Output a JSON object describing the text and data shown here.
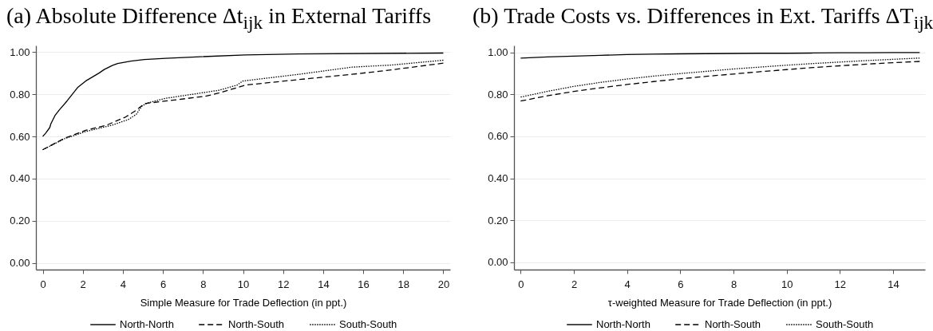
{
  "chart_data": [
    {
      "type": "line",
      "title": "(a) Absolute Difference Δt$_{ijk}$ in External Tariffs",
      "xlabel": "Simple Measure for Trade Deflection (in ppt.)",
      "xlim": [
        -0.34,
        20.34
      ],
      "ylim": [
        -0.032,
        1.032
      ],
      "xticks": [
        0,
        2,
        4,
        6,
        8,
        10,
        12,
        14,
        16,
        18,
        20
      ],
      "yticks": [
        {
          "value": 0,
          "label": "0.00"
        },
        {
          "value": 0.2,
          "label": "0.20"
        },
        {
          "value": 0.4,
          "label": "0.40"
        },
        {
          "value": 0.6,
          "label": "0.60"
        },
        {
          "value": 0.8,
          "label": "0.80"
        },
        {
          "value": 1,
          "label": "1.00"
        }
      ],
      "grid": "y",
      "legend": "bottom",
      "series": [
        {
          "name": "North-North",
          "color": "#000000",
          "line_style": "solid",
          "x": [
            0,
            0.15,
            0.35,
            0.41,
            0.61,
            0.81,
            1.21,
            1.74,
            2.14,
            2.81,
            3.07,
            3.47,
            3.74,
            4.4,
            5.07,
            6.13,
            7.46,
            10.12,
            12.78,
            20
          ],
          "values": [
            0.6,
            0.616,
            0.642,
            0.661,
            0.699,
            0.724,
            0.768,
            0.832,
            0.863,
            0.901,
            0.918,
            0.937,
            0.946,
            0.958,
            0.965,
            0.971,
            0.977,
            0.987,
            0.992,
            0.996
          ]
        },
        {
          "name": "North-South",
          "color": "#000000",
          "line_style": "dashed",
          "x": [
            0,
            1.08,
            2.14,
            3.2,
            4.13,
            4.67,
            5.07,
            6.13,
            8.12,
            8.78,
            9.71,
            10.12,
            12.78,
            15.44,
            17.4,
            20
          ],
          "values": [
            0.537,
            0.591,
            0.629,
            0.654,
            0.692,
            0.724,
            0.756,
            0.768,
            0.791,
            0.806,
            0.832,
            0.844,
            0.87,
            0.895,
            0.916,
            0.948
          ]
        },
        {
          "name": "South-South",
          "color": "#000000",
          "line_style": "dotted",
          "x": [
            0,
            1.08,
            2.14,
            3.47,
            4.27,
            4.67,
            4.94,
            5.2,
            6.13,
            8.78,
            9.71,
            9.98,
            12.78,
            15.44,
            17.4,
            20
          ],
          "values": [
            0.537,
            0.589,
            0.623,
            0.654,
            0.68,
            0.705,
            0.743,
            0.758,
            0.781,
            0.819,
            0.844,
            0.863,
            0.895,
            0.929,
            0.939,
            0.962
          ]
        }
      ]
    },
    {
      "type": "line",
      "title": "(b) Trade Costs vs. Differences in Ext. Tariffs ΔT$_{ijk}$",
      "xlabel": "τ-weighted Measure for Trade Deflection (in ppt.)",
      "xlim": [
        -0.25,
        15.2
      ],
      "ylim": [
        -0.035,
        1.033
      ],
      "xticks": [
        0,
        2,
        4,
        6,
        8,
        10,
        12,
        14
      ],
      "yticks": [
        {
          "value": 0,
          "label": "0.00"
        },
        {
          "value": 0.2,
          "label": "0.20"
        },
        {
          "value": 0.4,
          "label": "0.40"
        },
        {
          "value": 0.6,
          "label": "0.60"
        },
        {
          "value": 0.8,
          "label": "0.80"
        },
        {
          "value": 1,
          "label": "1.00"
        }
      ],
      "grid": "y",
      "legend": "bottom",
      "x": [
        0,
        1,
        2,
        3,
        4,
        5,
        6,
        7,
        8,
        9,
        10,
        11,
        12,
        13,
        14,
        15
      ],
      "series": [
        {
          "name": "North-North",
          "color": "#000000",
          "line_style": "solid",
          "values": [
            0.973,
            0.978,
            0.982,
            0.986,
            0.99,
            0.992,
            0.993,
            0.994,
            0.995,
            0.996,
            0.996,
            0.997,
            0.998,
            0.998,
            0.999,
            0.999
          ]
        },
        {
          "name": "North-South",
          "color": "#000000",
          "line_style": "dashed",
          "values": [
            0.768,
            0.793,
            0.814,
            0.831,
            0.847,
            0.861,
            0.874,
            0.886,
            0.897,
            0.908,
            0.918,
            0.928,
            0.936,
            0.944,
            0.951,
            0.957
          ]
        },
        {
          "name": "South-South",
          "color": "#000000",
          "line_style": "dotted",
          "values": [
            0.787,
            0.814,
            0.838,
            0.857,
            0.873,
            0.887,
            0.899,
            0.91,
            0.921,
            0.93,
            0.939,
            0.947,
            0.954,
            0.961,
            0.967,
            0.973
          ]
        }
      ]
    }
  ]
}
